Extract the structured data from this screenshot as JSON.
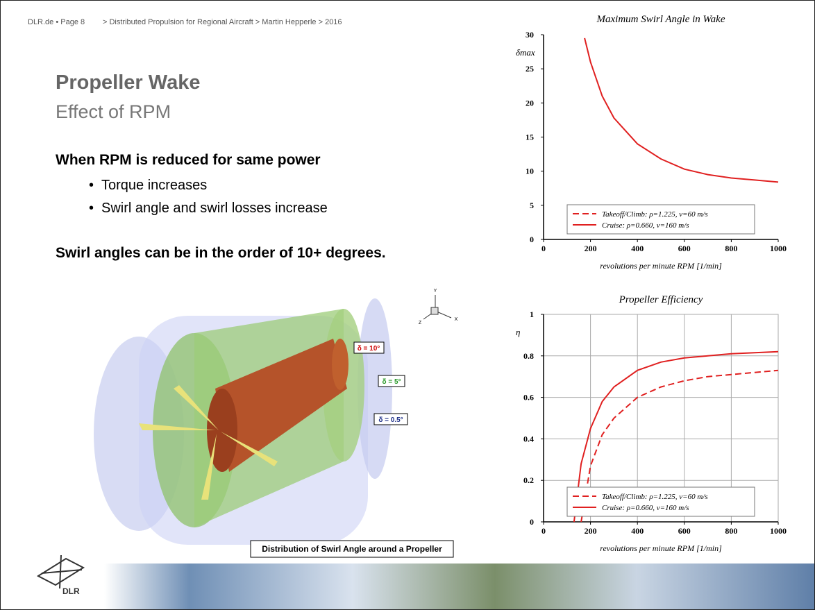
{
  "header": {
    "page": "DLR.de • Page 8",
    "breadcrumb": "> Distributed Propulsion for Regional Aircraft > Martin Hepperle > 2016"
  },
  "title": "Propeller Wake",
  "subtitle": "Effect of RPM",
  "heading": "When RPM is reduced for same power",
  "bullets": [
    "Torque increases",
    "Swirl angle and swirl losses increase"
  ],
  "statement": "Swirl angles can be in the order of 10+ degrees.",
  "figure": {
    "caption": "Distribution of Swirl Angle around a Propeller",
    "labels": [
      "δ = 10°",
      "δ = 5°",
      "δ = 0.5°"
    ],
    "axes": [
      "Y",
      "Z",
      "X"
    ]
  },
  "logo": "DLR",
  "chart_data": [
    {
      "type": "line",
      "title": "Maximum Swirl Angle in Wake",
      "xlabel": "revolutions per minute  RPM  [1/min]",
      "ylabel": "δmax",
      "x": [
        175,
        200,
        250,
        300,
        400,
        500,
        600,
        700,
        800,
        900,
        1000
      ],
      "series": [
        {
          "name": "Takeoff/Climb: ρ=1.225, v=60 m/s",
          "color": "#e02020",
          "linestyle": "dashed",
          "values": [
            null,
            null,
            null,
            null,
            null,
            null,
            null,
            null,
            null,
            null,
            null
          ]
        },
        {
          "name": "Cruise:          ρ=0.660, v=160 m/s",
          "color": "#e02020",
          "linestyle": "solid",
          "values": [
            29.5,
            26,
            21,
            17.8,
            14,
            11.8,
            10.3,
            9.5,
            9,
            8.7,
            8.4
          ]
        }
      ],
      "xlim": [
        0,
        1000
      ],
      "xticks": [
        0,
        200,
        400,
        600,
        800,
        1000
      ],
      "ylim": [
        0,
        30
      ],
      "yticks": [
        0,
        5,
        10,
        15,
        20,
        25,
        30
      ],
      "grid": false,
      "legend": "lower center"
    },
    {
      "type": "line",
      "title": "Propeller Efficiency",
      "xlabel": "revolutions per minute  RPM  [1/min]",
      "ylabel": "η",
      "x": [
        130,
        160,
        200,
        250,
        300,
        400,
        500,
        600,
        700,
        800,
        900,
        1000
      ],
      "series": [
        {
          "name": "Takeoff/Climb: ρ=1.225, v=60 m/s",
          "color": "#e02020",
          "linestyle": "dashed",
          "values": [
            null,
            0,
            0.27,
            0.42,
            0.5,
            0.6,
            0.65,
            0.68,
            0.7,
            0.71,
            0.72,
            0.73
          ]
        },
        {
          "name": "Cruise:          ρ=0.660, v=160 m/s",
          "color": "#e02020",
          "linestyle": "solid",
          "values": [
            0,
            0.28,
            0.45,
            0.58,
            0.65,
            0.73,
            0.77,
            0.79,
            0.8,
            0.81,
            0.815,
            0.82
          ]
        }
      ],
      "xlim": [
        0,
        1000
      ],
      "xticks": [
        0,
        200,
        400,
        600,
        800,
        1000
      ],
      "ylim": [
        0,
        1
      ],
      "yticks": [
        0,
        0.2,
        0.4,
        0.6,
        0.8,
        1
      ],
      "grid": true,
      "legend": "lower center"
    }
  ]
}
